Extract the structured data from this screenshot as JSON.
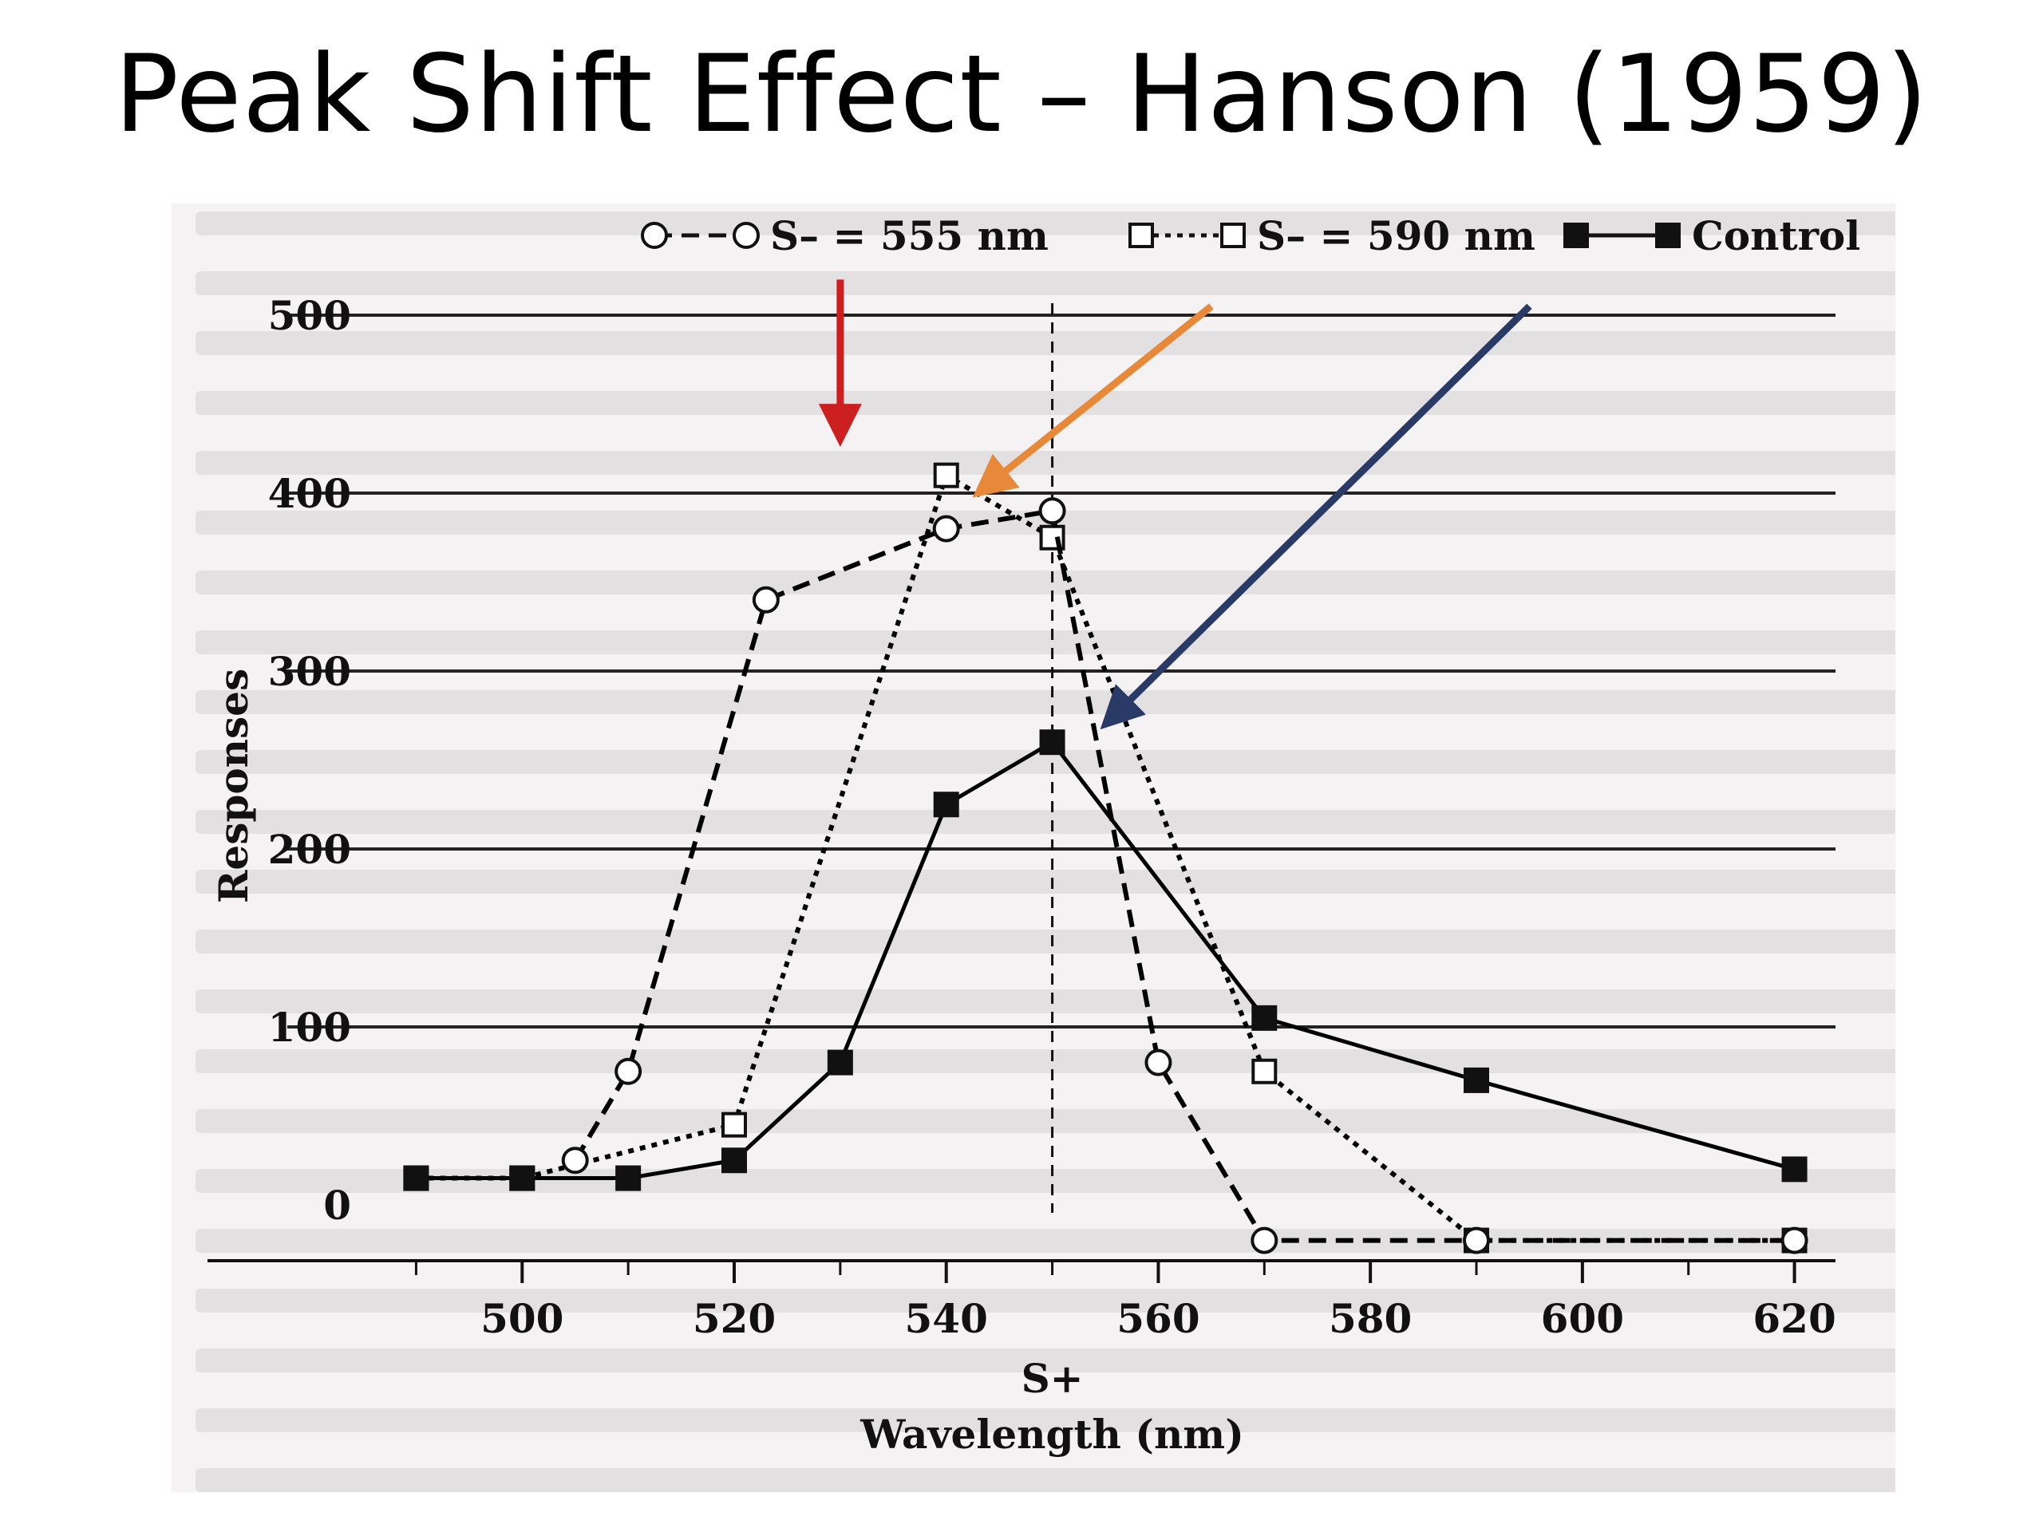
{
  "slide": {
    "title": "Peak Shift Effect – Hanson (1959)"
  },
  "chart_data": {
    "type": "line",
    "xlabel": "Wavelength (nm)",
    "ylabel": "Responses",
    "xlim": [
      485,
      625
    ],
    "ylim": [
      0,
      500
    ],
    "x_ticks": [
      500,
      520,
      540,
      560,
      580,
      600,
      620
    ],
    "y_ticks": [
      0,
      100,
      200,
      300,
      400,
      500
    ],
    "grid": "horizontal",
    "splus": {
      "x": 550,
      "label": "S+"
    },
    "series": [
      {
        "name": "S– = 555 nm",
        "marker": "open-circle",
        "style": "dashed",
        "color": "#000000",
        "points": [
          [
            505,
            25
          ],
          [
            510,
            75
          ],
          [
            523,
            340
          ],
          [
            540,
            380
          ],
          [
            550,
            390
          ],
          [
            560,
            80
          ],
          [
            570,
            -20
          ],
          [
            590,
            -20
          ],
          [
            620,
            -20
          ]
        ]
      },
      {
        "name": "S– = 590 nm",
        "marker": "open-square",
        "style": "dotted",
        "color": "#000000",
        "points": [
          [
            490,
            15
          ],
          [
            500,
            15
          ],
          [
            520,
            45
          ],
          [
            540,
            410
          ],
          [
            550,
            375
          ],
          [
            570,
            75
          ],
          [
            590,
            -20
          ],
          [
            620,
            -20
          ]
        ]
      },
      {
        "name": "Control",
        "marker": "filled-square",
        "style": "solid",
        "color": "#000000",
        "points": [
          [
            490,
            15
          ],
          [
            500,
            15
          ],
          [
            510,
            15
          ],
          [
            520,
            25
          ],
          [
            530,
            80
          ],
          [
            540,
            225
          ],
          [
            550,
            260
          ],
          [
            570,
            105
          ],
          [
            590,
            70
          ],
          [
            620,
            20
          ]
        ]
      }
    ],
    "annotations": [
      {
        "name": "red-arrow",
        "color": "#cc1f1f",
        "from": [
          530,
          520
        ],
        "to": [
          530,
          430
        ],
        "points_to": "S– = 555 nm"
      },
      {
        "name": "orange-arrow",
        "color": "#e8893a",
        "from": [
          565,
          505
        ],
        "to": [
          543,
          400
        ],
        "points_to": "S– = 590 nm"
      },
      {
        "name": "blue-arrow",
        "color": "#2a3a66",
        "from": [
          595,
          505
        ],
        "to": [
          555,
          270
        ],
        "points_to": "Control"
      }
    ]
  }
}
